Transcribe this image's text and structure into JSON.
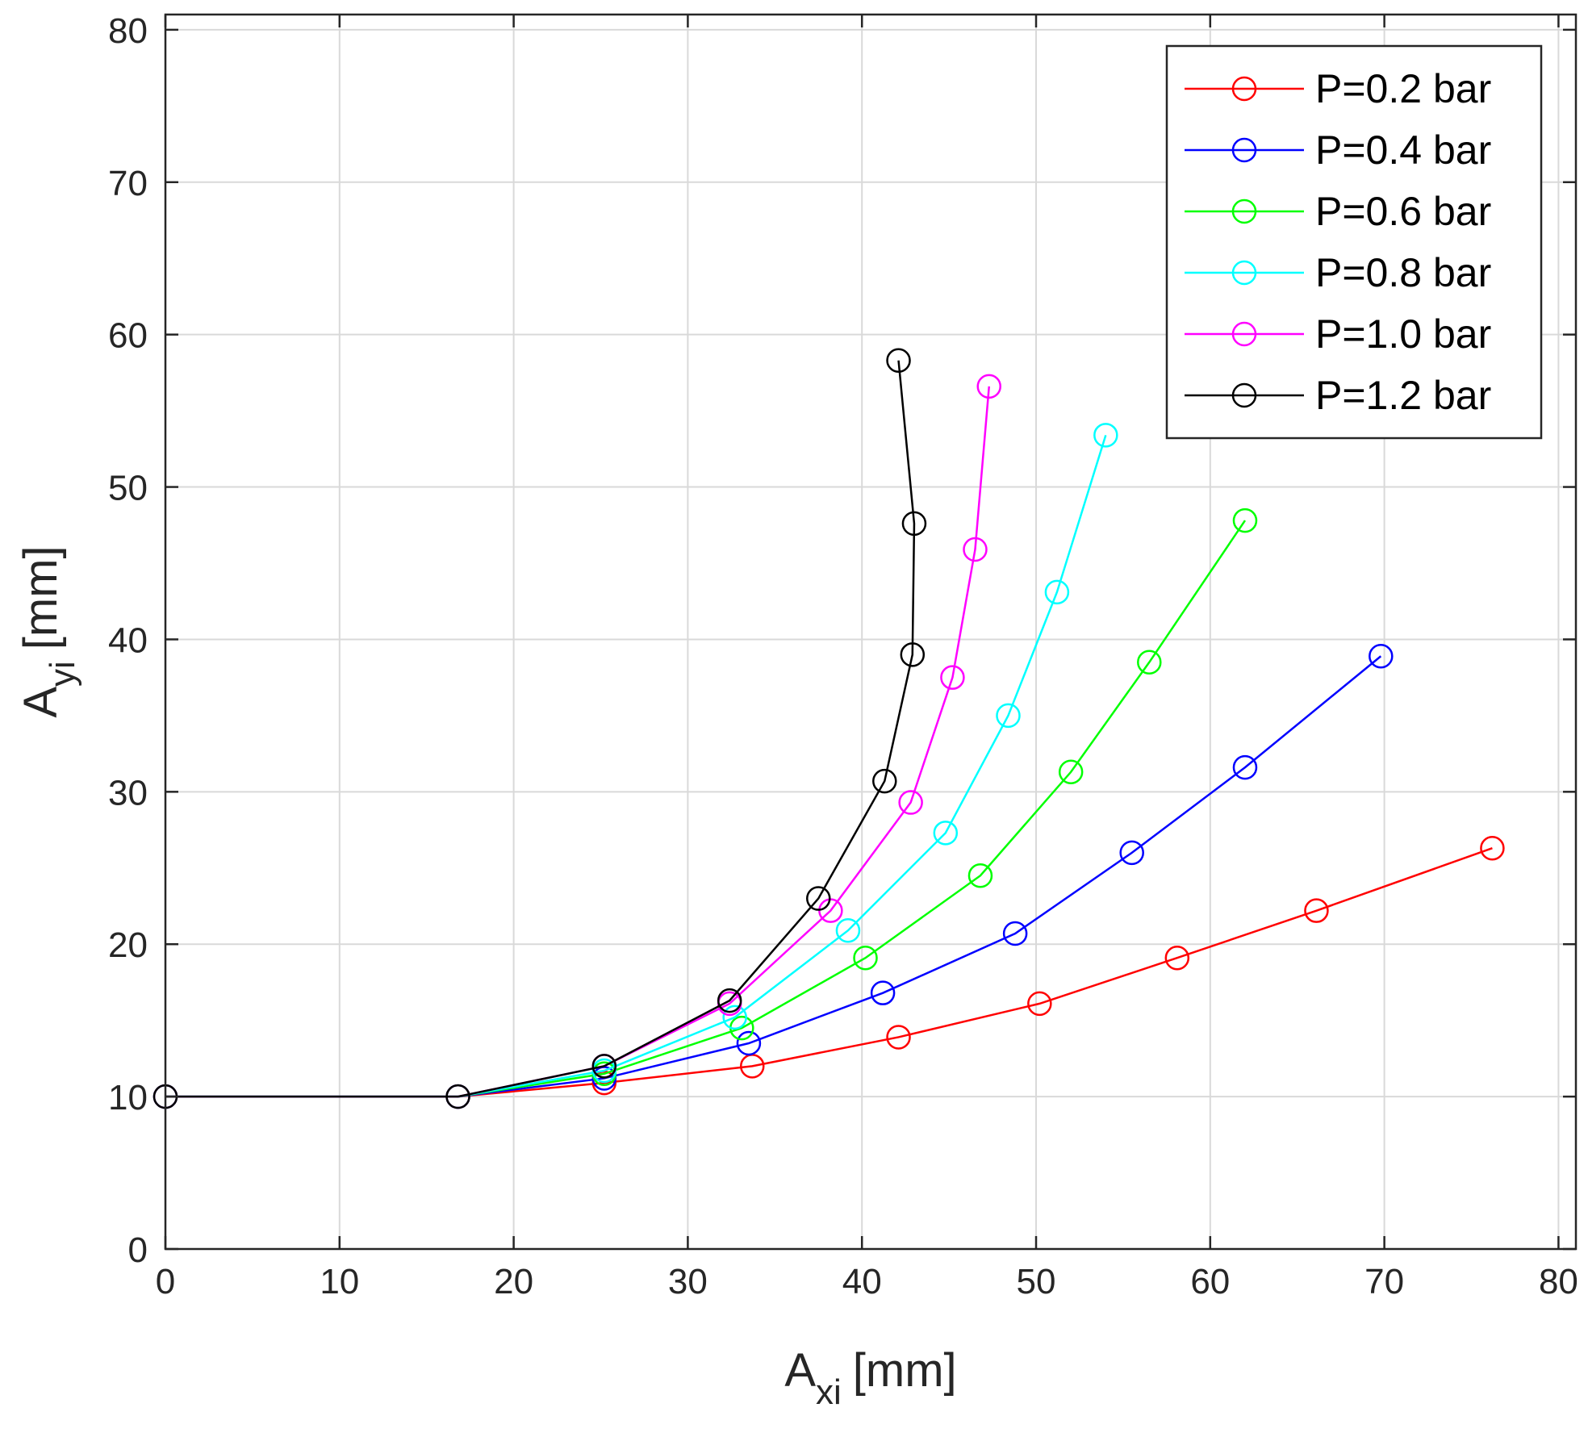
{
  "chart_data": {
    "type": "line",
    "title": "",
    "xlabel": {
      "main": "A",
      "sub": "xi",
      "unit": "[mm]"
    },
    "ylabel": {
      "main": "A",
      "sub": "yi",
      "unit": "[mm]"
    },
    "xlim": [
      0,
      81
    ],
    "ylim": [
      0,
      81
    ],
    "xticks": [
      0,
      10,
      20,
      30,
      40,
      50,
      60,
      70,
      80
    ],
    "yticks": [
      0,
      10,
      20,
      30,
      40,
      50,
      60,
      70,
      80
    ],
    "grid": true,
    "legend_position": "top-right",
    "marker": "circle",
    "series": [
      {
        "name": "P=0.2 bar",
        "color": "#ff0000",
        "x": [
          0,
          16.8,
          25.2,
          33.7,
          42.1,
          50.2,
          58.1,
          66.1,
          76.2
        ],
        "y": [
          10,
          10,
          10.9,
          12.0,
          13.9,
          16.1,
          19.1,
          22.2,
          26.3
        ]
      },
      {
        "name": "P=0.4 bar",
        "color": "#0000ff",
        "x": [
          0,
          16.8,
          25.2,
          33.5,
          41.2,
          48.8,
          55.5,
          62.0,
          69.8
        ],
        "y": [
          10,
          10,
          11.2,
          13.5,
          16.8,
          20.7,
          26.0,
          31.6,
          38.9
        ]
      },
      {
        "name": "P=0.6 bar",
        "color": "#00ff00",
        "x": [
          0,
          16.8,
          25.2,
          33.1,
          40.2,
          46.8,
          52.0,
          56.5,
          62.0
        ],
        "y": [
          10,
          10,
          11.5,
          14.5,
          19.1,
          24.5,
          31.3,
          38.5,
          47.8
        ]
      },
      {
        "name": "P=0.8 bar",
        "color": "#00ffff",
        "x": [
          0,
          16.8,
          25.2,
          32.7,
          39.2,
          44.8,
          48.4,
          51.2,
          54.0
        ],
        "y": [
          10,
          10,
          11.7,
          15.2,
          20.9,
          27.3,
          35.0,
          43.1,
          53.4
        ]
      },
      {
        "name": "P=1.0 bar",
        "color": "#ff00ff",
        "x": [
          0,
          16.8,
          25.2,
          32.4,
          38.2,
          42.8,
          45.2,
          46.5,
          47.3
        ],
        "y": [
          10,
          10,
          12.0,
          16.1,
          22.2,
          29.3,
          37.5,
          45.9,
          56.6
        ]
      },
      {
        "name": "P=1.2 bar",
        "color": "#000000",
        "x": [
          0,
          16.8,
          25.2,
          32.4,
          37.5,
          41.3,
          42.9,
          43.0,
          42.1
        ],
        "y": [
          10,
          10,
          12.0,
          16.3,
          23.0,
          30.7,
          39.0,
          47.6,
          58.3
        ]
      }
    ]
  }
}
